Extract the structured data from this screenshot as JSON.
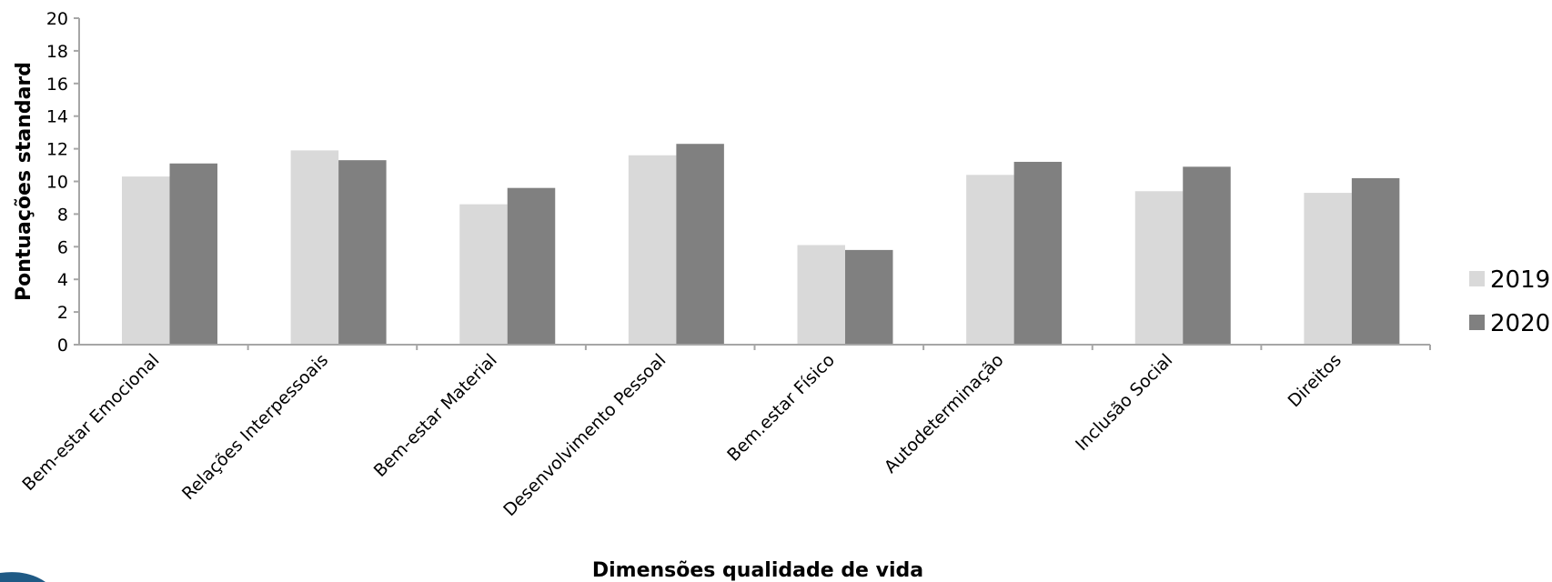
{
  "chart_data": {
    "type": "bar",
    "categories": [
      "Bem-estar Emocional",
      "Relações Interpessoais",
      "Bem-estar Material",
      "Desenvolvimento Pessoal",
      "Bem.estar Físico",
      "Autodeterminação",
      "Inclusão Social",
      "Direitos"
    ],
    "series": [
      {
        "name": "2019",
        "values": [
          10.3,
          11.9,
          8.6,
          11.6,
          6.1,
          10.4,
          9.4,
          9.3
        ],
        "color": "#d9d9d9"
      },
      {
        "name": "2020",
        "values": [
          11.1,
          11.3,
          9.6,
          12.3,
          5.8,
          11.2,
          10.9,
          10.2
        ],
        "color": "#808080"
      }
    ],
    "ylabel": "Pontuações standard",
    "xlabel": "Dimensões qualidade de vida",
    "ylim": [
      0,
      20
    ],
    "yticks": [
      0,
      2,
      4,
      6,
      8,
      10,
      12,
      14,
      16,
      18,
      20
    ],
    "grid": false,
    "legend_position": "right"
  },
  "colors": {
    "axis": "#a6a6a6",
    "decoration": "#1f5a85"
  }
}
